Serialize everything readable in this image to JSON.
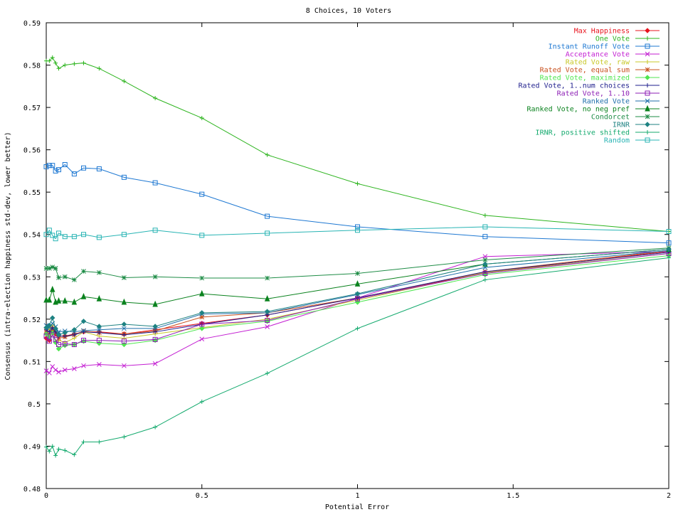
{
  "chart_data": {
    "type": "line",
    "title": "8 Choices, 10 Voters",
    "xlabel": "Potential Error",
    "ylabel": "Consensus (intra-election happiness std-dev, lower better)",
    "xlim": [
      0,
      2
    ],
    "ylim": [
      0.48,
      0.59
    ],
    "xticks": [
      0,
      0.5,
      1,
      1.5,
      2
    ],
    "xtick_labels": [
      "0",
      "0.5",
      "1",
      "1.5",
      "2"
    ],
    "yticks": [
      0.48,
      0.49,
      0.5,
      0.51,
      0.52,
      0.53,
      0.54,
      0.55,
      0.56,
      0.57,
      0.58,
      0.59
    ],
    "ytick_labels": [
      "0.48",
      "0.49",
      "0.5",
      "0.51",
      "0.52",
      "0.53",
      "0.54",
      "0.55",
      "0.56",
      "0.57",
      "0.58",
      "0.59"
    ],
    "grid": false,
    "legend_position": "top-right",
    "x": [
      0,
      0.01,
      0.02,
      0.03,
      0.04,
      0.06,
      0.09,
      0.12,
      0.17,
      0.25,
      0.35,
      0.5,
      0.71,
      1,
      1.41,
      2
    ],
    "series": [
      {
        "name": "Max Happiness",
        "color": "#e8141e",
        "marker": "diamond",
        "values": [
          0.5155,
          0.515,
          0.5175,
          0.5165,
          0.516,
          0.516,
          0.5165,
          0.517,
          0.517,
          0.5165,
          0.5175,
          0.519,
          0.521,
          0.525,
          0.531,
          0.536
        ]
      },
      {
        "name": "One Vote",
        "color": "#2db41e",
        "marker": "plus",
        "values": [
          0.581,
          0.581,
          0.5818,
          0.5805,
          0.5792,
          0.58,
          0.5803,
          0.5805,
          0.5792,
          0.5762,
          0.5722,
          0.5675,
          0.5588,
          0.552,
          0.5445,
          0.5407
        ]
      },
      {
        "name": "Instant Runoff Vote",
        "color": "#1e78d2",
        "marker": "square",
        "values": [
          0.556,
          0.5563,
          0.5563,
          0.555,
          0.5553,
          0.5565,
          0.5543,
          0.5557,
          0.5555,
          0.5535,
          0.5522,
          0.5495,
          0.5443,
          0.5418,
          0.5395,
          0.538
        ]
      },
      {
        "name": "Acceptance Vote",
        "color": "#c31ed2",
        "marker": "x",
        "values": [
          0.5078,
          0.5073,
          0.5088,
          0.508,
          0.5075,
          0.508,
          0.5083,
          0.509,
          0.5093,
          0.509,
          0.5095,
          0.5153,
          0.5182,
          0.525,
          0.5348,
          0.536
        ]
      },
      {
        "name": "Rated Vote, raw",
        "color": "#c8c828",
        "marker": "plus",
        "values": [
          0.518,
          0.5175,
          0.5185,
          0.517,
          0.515,
          0.5145,
          0.5155,
          0.517,
          0.516,
          0.5155,
          0.5165,
          0.518,
          0.52,
          0.5245,
          0.531,
          0.5355
        ]
      },
      {
        "name": "Rated Vote, equal sum",
        "color": "#c8501e",
        "marker": "star",
        "values": [
          0.5172,
          0.5165,
          0.5178,
          0.5168,
          0.5155,
          0.5158,
          0.5163,
          0.5172,
          0.5168,
          0.5165,
          0.5172,
          0.5205,
          0.5215,
          0.525,
          0.5312,
          0.5362
        ]
      },
      {
        "name": "Rated Vote, maximized",
        "color": "#50e650",
        "marker": "diamond",
        "values": [
          0.5165,
          0.5158,
          0.5168,
          0.5145,
          0.513,
          0.5138,
          0.514,
          0.5148,
          0.5143,
          0.514,
          0.515,
          0.5178,
          0.5195,
          0.524,
          0.5305,
          0.535
        ]
      },
      {
        "name": "Rated Vote, 1..num choices",
        "color": "#1e1e8c",
        "marker": "plus",
        "values": [
          0.5175,
          0.517,
          0.518,
          0.517,
          0.516,
          0.516,
          0.5163,
          0.517,
          0.5168,
          0.5163,
          0.517,
          0.5188,
          0.521,
          0.525,
          0.5312,
          0.5358
        ]
      },
      {
        "name": "Rated Vote, 1..10",
        "color": "#8c1eb4",
        "marker": "square",
        "values": [
          0.516,
          0.5148,
          0.5163,
          0.5152,
          0.514,
          0.5142,
          0.514,
          0.515,
          0.515,
          0.5148,
          0.5152,
          0.5188,
          0.5197,
          0.5248,
          0.5308,
          0.5355
        ]
      },
      {
        "name": "Ranked Vote",
        "color": "#1e6eaa",
        "marker": "x",
        "values": [
          0.5185,
          0.518,
          0.519,
          0.5182,
          0.517,
          0.5172,
          0.517,
          0.5173,
          0.5175,
          0.5178,
          0.5178,
          0.5212,
          0.5215,
          0.5258,
          0.5322,
          0.5362
        ]
      },
      {
        "name": "Ranked Vote, no neg pref",
        "color": "#0a821e",
        "marker": "triangle",
        "values": [
          0.5245,
          0.5245,
          0.527,
          0.524,
          0.5243,
          0.5243,
          0.524,
          0.5253,
          0.5248,
          0.524,
          0.5235,
          0.526,
          0.5248,
          0.5283,
          0.533,
          0.5365
        ]
      },
      {
        "name": "Condorcet",
        "color": "#1e8c46",
        "marker": "star",
        "values": [
          0.532,
          0.532,
          0.5323,
          0.532,
          0.5298,
          0.53,
          0.5293,
          0.5313,
          0.531,
          0.5298,
          0.53,
          0.5297,
          0.5297,
          0.5308,
          0.534,
          0.5368
        ]
      },
      {
        "name": "IRNR",
        "color": "#1e8282",
        "marker": "diamond",
        "values": [
          0.518,
          0.5185,
          0.5203,
          0.5178,
          0.5163,
          0.5168,
          0.5175,
          0.5195,
          0.5183,
          0.5188,
          0.5183,
          0.5215,
          0.5218,
          0.526,
          0.533,
          0.5365
        ]
      },
      {
        "name": "IRNR, positive shifted",
        "color": "#14aa6e",
        "marker": "plus",
        "values": [
          0.4898,
          0.4888,
          0.49,
          0.4878,
          0.4893,
          0.489,
          0.488,
          0.491,
          0.491,
          0.4922,
          0.4945,
          0.5005,
          0.5072,
          0.5178,
          0.5293,
          0.5345
        ]
      },
      {
        "name": "Random",
        "color": "#28b4b4",
        "marker": "square",
        "values": [
          0.54,
          0.541,
          0.5398,
          0.539,
          0.5403,
          0.5395,
          0.5395,
          0.54,
          0.5393,
          0.54,
          0.541,
          0.5398,
          0.5403,
          0.541,
          0.5418,
          0.5407
        ]
      }
    ]
  }
}
